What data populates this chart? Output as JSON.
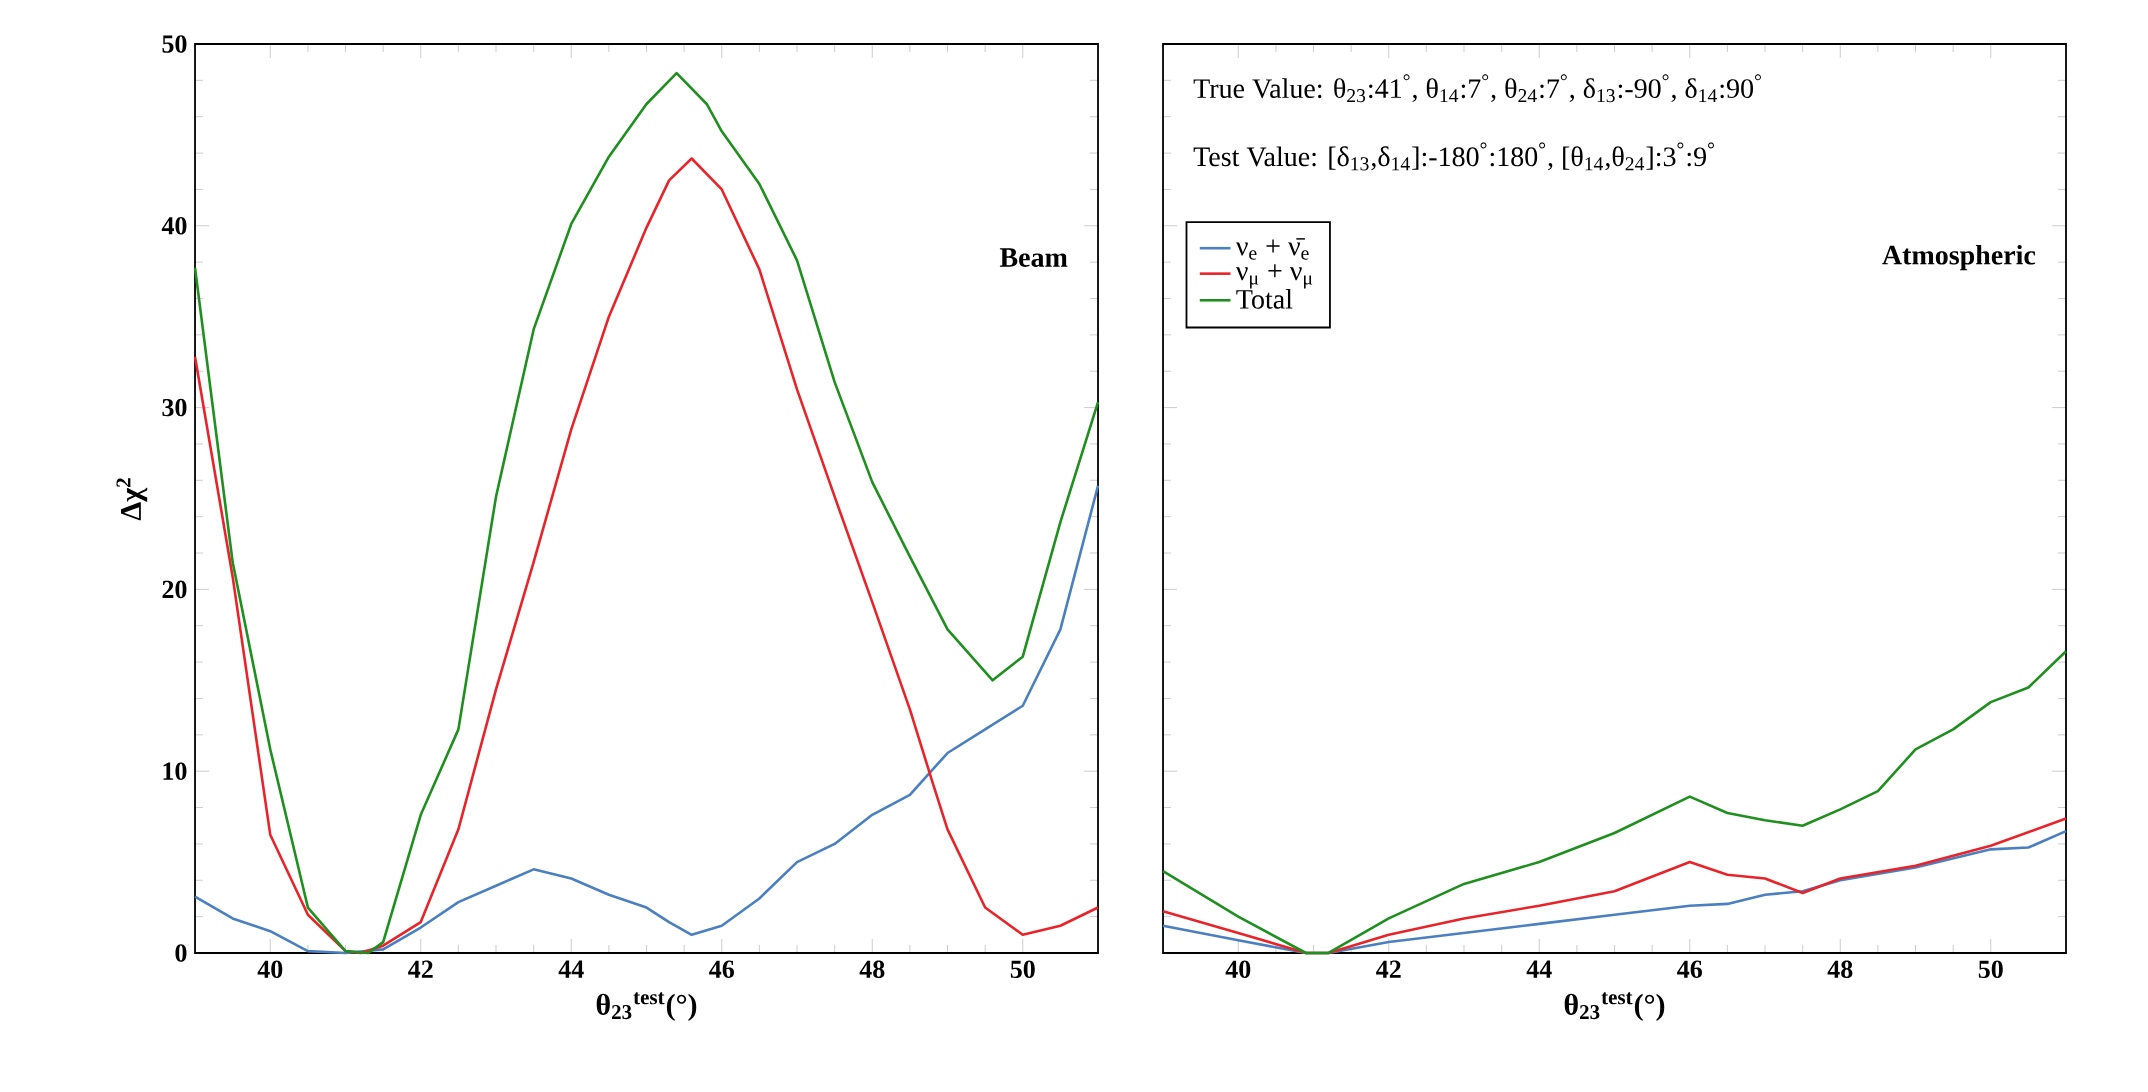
{
  "chart_data": [
    {
      "type": "line",
      "xlabel": "θ$_{23}$$^{test}$(°)",
      "ylabel": "Δχ$^{2}$",
      "annotations": [
        "Beam"
      ],
      "xlim": [
        39,
        51
      ],
      "ylim": [
        0,
        50
      ],
      "xticks": [
        40,
        42,
        44,
        46,
        48,
        50
      ],
      "yticks": [
        0,
        10,
        20,
        30,
        40,
        50
      ],
      "grid": false,
      "legend": false,
      "series": [
        {
          "color": "#4a7fc0",
          "x": [
            39,
            39.5,
            40,
            40.5,
            41,
            41.5,
            42,
            42.5,
            43,
            43.5,
            44,
            44.5,
            45,
            45.3,
            45.6,
            46,
            46.5,
            47,
            47.5,
            48,
            48.5,
            49,
            49.5,
            50,
            50.5,
            51
          ],
          "values": [
            3.1,
            1.9,
            1.2,
            0.1,
            0,
            0.2,
            1.4,
            2.8,
            3.7,
            4.6,
            4.1,
            3.2,
            2.5,
            1.7,
            1.0,
            1.5,
            3.0,
            5.0,
            6.0,
            7.6,
            8.7,
            11.0,
            12.3,
            13.6,
            17.8,
            25.7
          ]
        },
        {
          "color": "#e8242a",
          "x": [
            39,
            39.5,
            40,
            40.5,
            41,
            41.2,
            41.5,
            42,
            42.5,
            43,
            43.5,
            44,
            44.5,
            45,
            45.3,
            45.6,
            46,
            46.5,
            47,
            47.5,
            48,
            48.5,
            48.8,
            49,
            49.5,
            50,
            50.5,
            51
          ],
          "values": [
            32.8,
            20.7,
            6.5,
            2.1,
            0.1,
            0,
            0.4,
            1.7,
            6.8,
            14.5,
            21.5,
            28.8,
            35.0,
            39.9,
            42.5,
            43.7,
            42.0,
            37.6,
            31.0,
            25.1,
            19.3,
            13.4,
            9.4,
            6.8,
            2.5,
            1.0,
            1.5,
            2.5
          ]
        },
        {
          "color": "#1f8f1f",
          "x": [
            39,
            39.5,
            40,
            40.5,
            41,
            41.3,
            41.5,
            42,
            42.5,
            43,
            43.5,
            44,
            44.5,
            45,
            45.4,
            45.8,
            46,
            46.5,
            47,
            47.5,
            48,
            48.5,
            49,
            49.6,
            50,
            50.5,
            51
          ],
          "values": [
            37.7,
            21.5,
            11.2,
            2.5,
            0.1,
            0,
            0.6,
            7.6,
            12.3,
            25.1,
            34.3,
            40.1,
            43.8,
            46.7,
            48.4,
            46.7,
            45.2,
            42.3,
            38.1,
            31.4,
            25.9,
            21.8,
            17.8,
            15.0,
            16.3,
            23.7,
            30.3
          ]
        }
      ]
    },
    {
      "type": "line",
      "xlabel": "θ$_{23}$$^{test}$(°)",
      "annotations": [
        "True Value: θ$_{23}$:41$^{°}$, θ$_{14}$:7$^{°}$, θ$_{24}$:7$^{°}$, δ$_{13}$:-90$^{°}$, δ$_{14}$:90$^{°}$",
        "Test Value: [δ$_{13}$,δ$_{14}$]:-180$^{°}$:180$^{°}$, [θ$_{14}$,θ$_{24}$]:3$^{°}$:9$^{°}$",
        "Atmospheric"
      ],
      "xlim": [
        39,
        51
      ],
      "ylim": [
        0,
        50
      ],
      "xticks": [
        40,
        42,
        44,
        46,
        48,
        50
      ],
      "yticks": [
        0,
        10,
        20,
        30,
        40,
        50
      ],
      "tick_labels": "x",
      "grid": false,
      "legend": "top left",
      "series": [
        {
          "name": "ν$_{e}$ + ν̄$_{e}$",
          "color": "#4a7fc0",
          "x": [
            39,
            40,
            40.9,
            41.2,
            42,
            43,
            44,
            45,
            46,
            46.5,
            47,
            47.5,
            48,
            49,
            50,
            50.5,
            51
          ],
          "values": [
            1.5,
            0.7,
            0,
            0,
            0.6,
            1.1,
            1.6,
            2.1,
            2.6,
            2.7,
            3.2,
            3.4,
            4.0,
            4.7,
            5.7,
            5.8,
            6.7
          ]
        },
        {
          "name": "ν$_{μ}$ + ν$_{μ}$",
          "color": "#e8242a",
          "x": [
            39,
            40,
            40.9,
            41.2,
            42,
            43,
            44,
            45,
            46,
            46.5,
            47,
            47.5,
            48,
            49,
            50,
            51
          ],
          "values": [
            2.3,
            1.1,
            0,
            0,
            1.0,
            1.9,
            2.6,
            3.4,
            5.0,
            4.3,
            4.1,
            3.3,
            4.1,
            4.8,
            5.9,
            7.4
          ]
        },
        {
          "name": "Total",
          "color": "#1f8f1f",
          "x": [
            39,
            40,
            40.9,
            41.2,
            42,
            43,
            44,
            45,
            46,
            46.5,
            47,
            47.5,
            48,
            48.5,
            49,
            49.5,
            50,
            50.5,
            51
          ],
          "values": [
            4.5,
            2.0,
            0,
            0,
            1.9,
            3.8,
            5.0,
            6.6,
            8.6,
            7.7,
            7.3,
            7.0,
            7.9,
            8.9,
            11.2,
            12.3,
            13.8,
            14.6,
            16.6
          ]
        }
      ]
    }
  ]
}
